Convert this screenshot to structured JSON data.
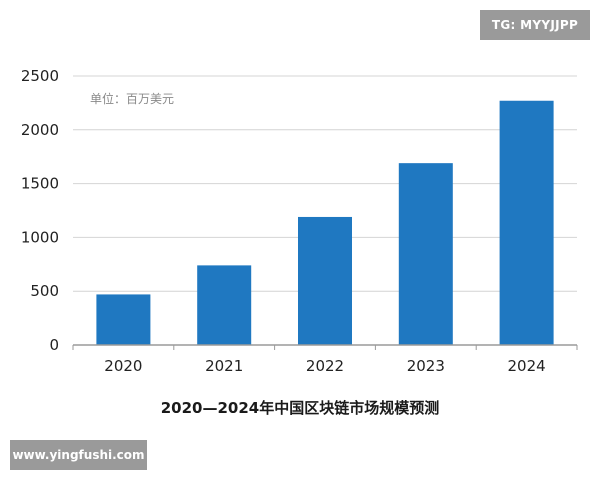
{
  "overlays": {
    "top_badge": "TG: MYYJJPP",
    "bottom_badge": "www.yingfushi.com"
  },
  "colors": {
    "bar": "#1f78c1",
    "grid": "#d4d4d4",
    "axis": "#9a9a9a"
  },
  "chart_data": {
    "type": "bar",
    "title": "2020—2024年中国区块链市场规模预测",
    "unit_label": "单位：百万美元",
    "xlabel": "",
    "ylabel": "",
    "categories": [
      "2020",
      "2021",
      "2022",
      "2023",
      "2024"
    ],
    "values": [
      470,
      740,
      1190,
      1690,
      2270
    ],
    "ylim": [
      0,
      2500
    ],
    "yticks": [
      0,
      500,
      1000,
      1500,
      2000,
      2500
    ],
    "grid": true,
    "legend": "none"
  }
}
